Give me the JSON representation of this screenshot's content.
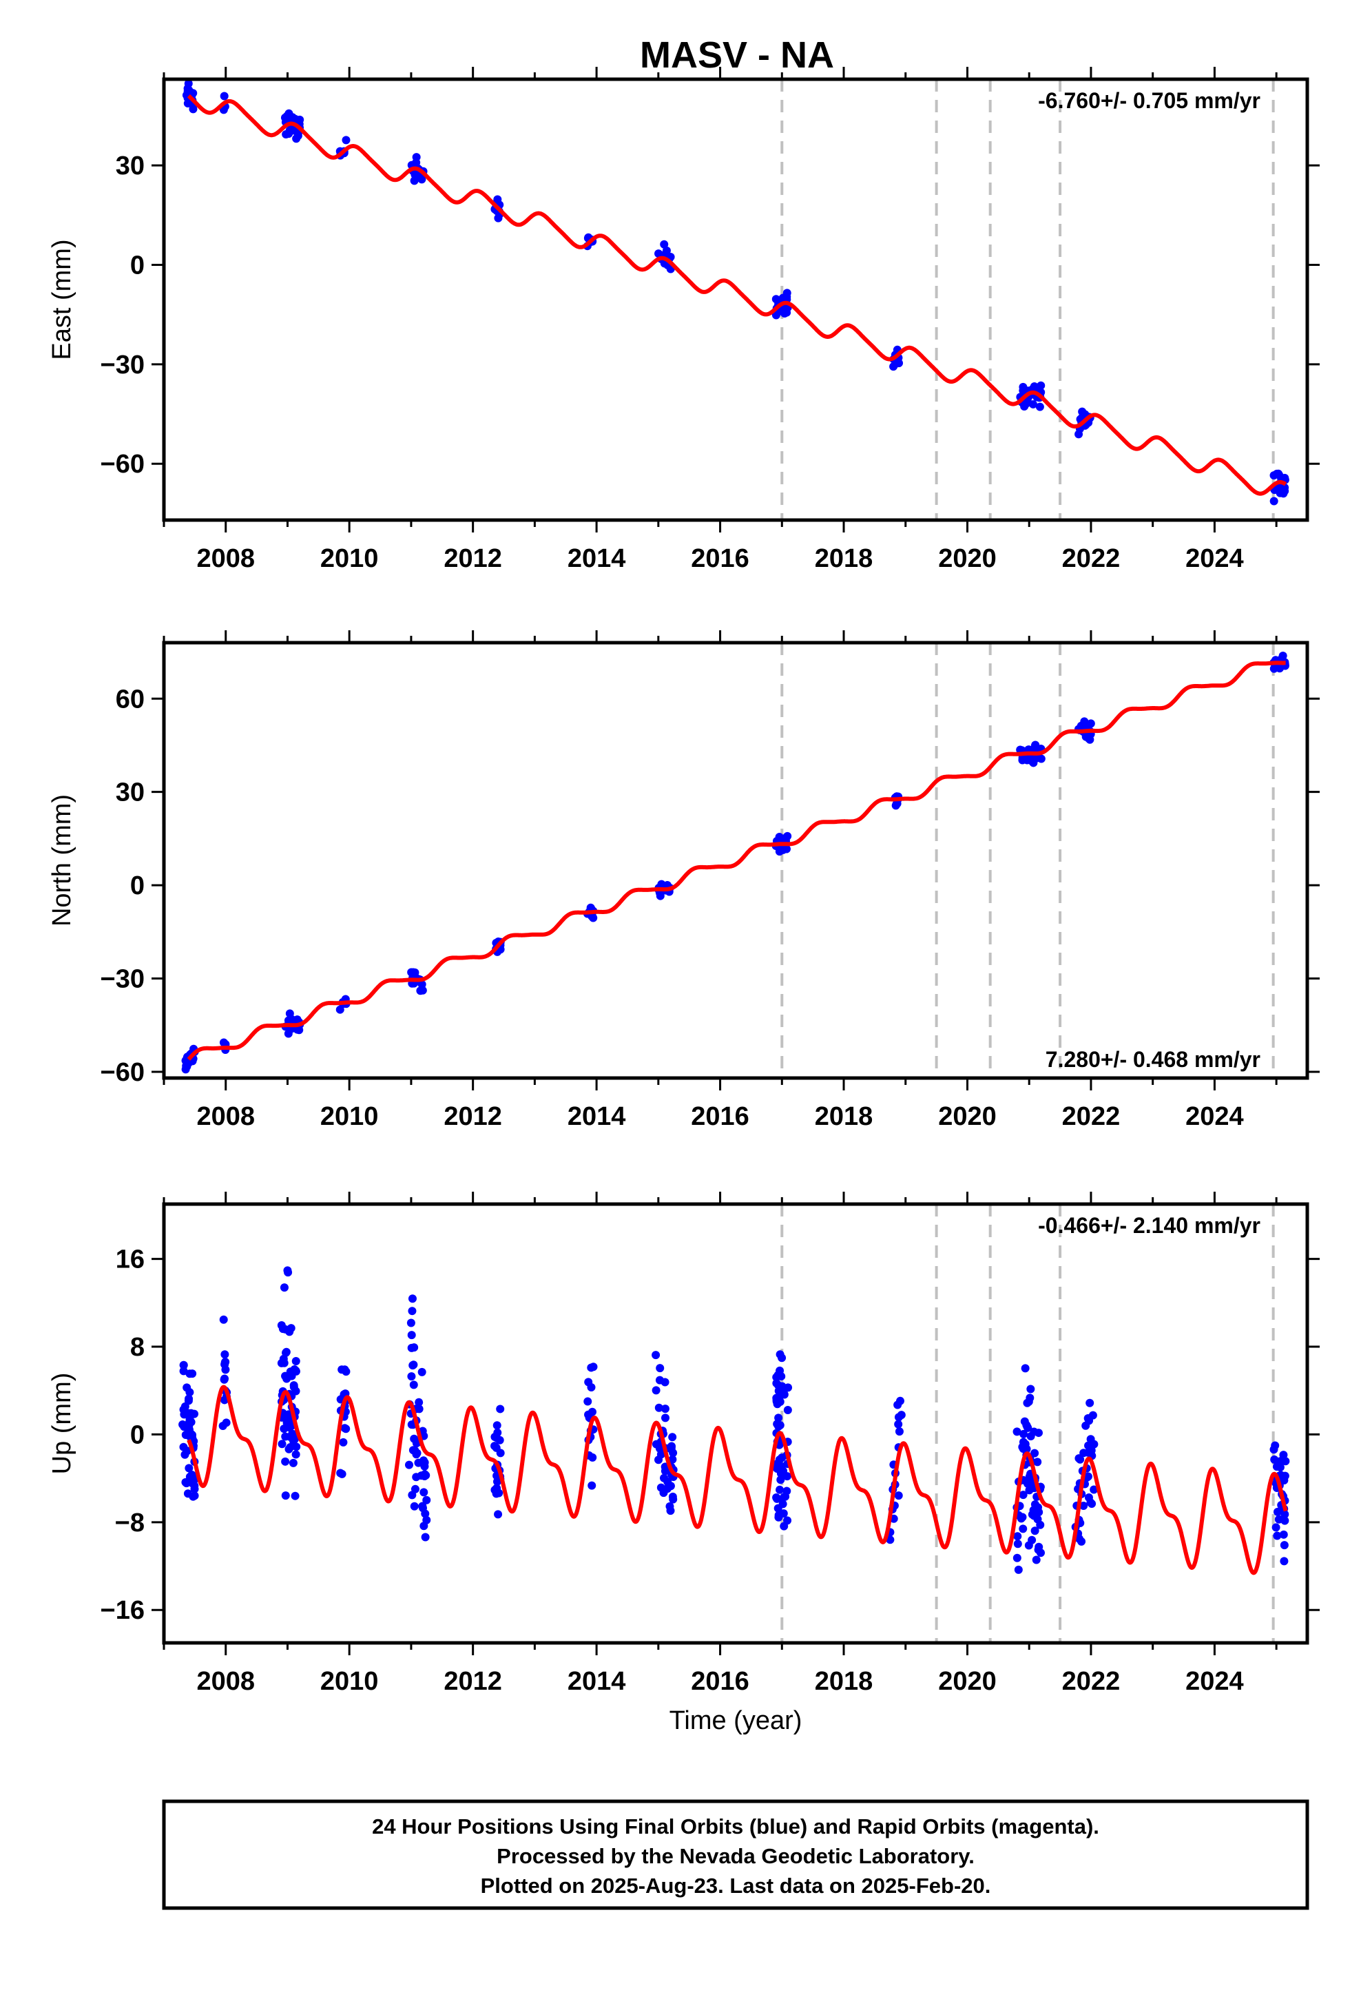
{
  "title": "MASV - NA",
  "footer": {
    "lines": [
      "24 Hour Positions Using Final Orbits (blue) and Rapid Orbits (magenta).",
      "Processed by the Nevada Geodetic Laboratory.",
      "Plotted on 2025-Aug-23. Last data on 2025-Feb-20."
    ]
  },
  "colors": {
    "data": "#0000ff",
    "model": "#ff0000",
    "steps": "#c0c0c0",
    "frame": "#000000"
  },
  "chart_data": [
    {
      "type": "scatter",
      "name": "east",
      "ylabel": "East (mm)",
      "xlabel": "",
      "rate_text": "-6.760+/- 0.705 mm/yr",
      "rate_position": "top-right",
      "xlim": [
        2007.0,
        2025.5
      ],
      "ylim": [
        -77,
        56
      ],
      "xticks": [
        2008,
        2010,
        2012,
        2014,
        2016,
        2018,
        2020,
        2022,
        2024
      ],
      "yticks": [
        -60,
        -30,
        0,
        30
      ],
      "trend": {
        "ref_year": 2007.4,
        "offset": 51,
        "rate": -6.76,
        "annual_amp": 2.8,
        "phase": 0.1,
        "semi_amp": 0.5
      },
      "step_years": [
        2017.0,
        2019.5,
        2020.37,
        2021.5,
        2024.95
      ],
      "clusters": [
        {
          "start": 2007.35,
          "end": 2007.5,
          "n": 28,
          "spread": 1.6
        },
        {
          "start": 2007.95,
          "end": 2008.0,
          "n": 3,
          "spread": 1.2
        },
        {
          "start": 2008.95,
          "end": 2009.2,
          "n": 30,
          "spread": 1.8
        },
        {
          "start": 2009.85,
          "end": 2009.95,
          "n": 8,
          "spread": 1.2
        },
        {
          "start": 2011.0,
          "end": 2011.2,
          "n": 22,
          "spread": 1.6
        },
        {
          "start": 2012.35,
          "end": 2012.45,
          "n": 10,
          "spread": 1.4
        },
        {
          "start": 2013.85,
          "end": 2013.95,
          "n": 8,
          "spread": 1.2
        },
        {
          "start": 2015.0,
          "end": 2015.2,
          "n": 18,
          "spread": 1.8
        },
        {
          "start": 2016.9,
          "end": 2017.1,
          "n": 26,
          "spread": 1.8
        },
        {
          "start": 2018.8,
          "end": 2018.9,
          "n": 8,
          "spread": 1.2
        },
        {
          "start": 2020.85,
          "end": 2021.2,
          "n": 36,
          "spread": 1.6
        },
        {
          "start": 2021.8,
          "end": 2022.0,
          "n": 22,
          "spread": 1.6
        },
        {
          "start": 2024.95,
          "end": 2025.15,
          "n": 18,
          "spread": 2.2
        }
      ]
    },
    {
      "type": "scatter",
      "name": "north",
      "ylabel": "North (mm)",
      "xlabel": "",
      "rate_text": "7.280+/- 0.468 mm/yr",
      "rate_position": "bottom-right",
      "xlim": [
        2007.0,
        2025.5
      ],
      "ylim": [
        -62,
        78
      ],
      "xticks": [
        2008,
        2010,
        2012,
        2014,
        2016,
        2018,
        2020,
        2022,
        2024
      ],
      "yticks": [
        -60,
        -30,
        0,
        30,
        60
      ],
      "trend": {
        "ref_year": 2007.4,
        "offset": -56,
        "rate": 7.28,
        "annual_amp": 1.7,
        "phase": 0.6,
        "semi_amp": 0.4
      },
      "step_years": [
        2017.0,
        2019.5,
        2020.37,
        2021.5,
        2024.95
      ],
      "clusters": [
        {
          "start": 2007.35,
          "end": 2007.5,
          "n": 22,
          "spread": 1.4
        },
        {
          "start": 2007.95,
          "end": 2008.0,
          "n": 4,
          "spread": 1.0
        },
        {
          "start": 2008.95,
          "end": 2009.2,
          "n": 28,
          "spread": 1.4
        },
        {
          "start": 2009.85,
          "end": 2009.95,
          "n": 8,
          "spread": 1.0
        },
        {
          "start": 2011.0,
          "end": 2011.2,
          "n": 22,
          "spread": 1.4
        },
        {
          "start": 2012.35,
          "end": 2012.45,
          "n": 10,
          "spread": 1.4
        },
        {
          "start": 2013.85,
          "end": 2013.95,
          "n": 8,
          "spread": 1.2
        },
        {
          "start": 2015.0,
          "end": 2015.2,
          "n": 14,
          "spread": 1.4
        },
        {
          "start": 2016.9,
          "end": 2017.1,
          "n": 24,
          "spread": 1.4
        },
        {
          "start": 2018.8,
          "end": 2018.9,
          "n": 8,
          "spread": 1.0
        },
        {
          "start": 2020.85,
          "end": 2021.2,
          "n": 32,
          "spread": 1.4
        },
        {
          "start": 2021.8,
          "end": 2022.0,
          "n": 20,
          "spread": 1.4
        },
        {
          "start": 2024.95,
          "end": 2025.15,
          "n": 16,
          "spread": 1.2
        }
      ]
    },
    {
      "type": "scatter",
      "name": "up",
      "ylabel": "Up (mm)",
      "xlabel": "Time (year)",
      "rate_text": "-0.466+/- 2.140 mm/yr",
      "rate_position": "top-right",
      "xlim": [
        2007.0,
        2025.5
      ],
      "ylim": [
        -19,
        21
      ],
      "xticks": [
        2008,
        2010,
        2012,
        2014,
        2016,
        2018,
        2020,
        2022,
        2024
      ],
      "yticks": [
        -16,
        -8,
        0,
        8,
        16
      ],
      "trend": {
        "ref_year": 2007.4,
        "offset": 0,
        "rate": -0.466,
        "annual_amp": 3.6,
        "phase": 0.2,
        "semi_amp": 1.7
      },
      "step_years": [
        2017.0,
        2019.5,
        2020.37,
        2021.5,
        2024.95
      ],
      "clusters": [
        {
          "start": 2007.3,
          "end": 2007.5,
          "n": 50,
          "spread": 3.0
        },
        {
          "start": 2007.95,
          "end": 2008.02,
          "n": 14,
          "spread": 2.5
        },
        {
          "start": 2008.9,
          "end": 2009.15,
          "n": 70,
          "spread": 4.5
        },
        {
          "start": 2009.85,
          "end": 2009.95,
          "n": 18,
          "spread": 3.0
        },
        {
          "start": 2010.95,
          "end": 2011.25,
          "n": 50,
          "spread": 4.5
        },
        {
          "start": 2012.35,
          "end": 2012.45,
          "n": 22,
          "spread": 3.0
        },
        {
          "start": 2013.85,
          "end": 2013.95,
          "n": 16,
          "spread": 2.5
        },
        {
          "start": 2014.95,
          "end": 2015.25,
          "n": 44,
          "spread": 2.5
        },
        {
          "start": 2016.9,
          "end": 2017.1,
          "n": 60,
          "spread": 4.0
        },
        {
          "start": 2018.75,
          "end": 2018.95,
          "n": 18,
          "spread": 2.5
        },
        {
          "start": 2020.8,
          "end": 2021.2,
          "n": 70,
          "spread": 3.5
        },
        {
          "start": 2021.75,
          "end": 2022.05,
          "n": 36,
          "spread": 3.0
        },
        {
          "start": 2024.95,
          "end": 2025.15,
          "n": 34,
          "spread": 3.0
        }
      ]
    }
  ]
}
